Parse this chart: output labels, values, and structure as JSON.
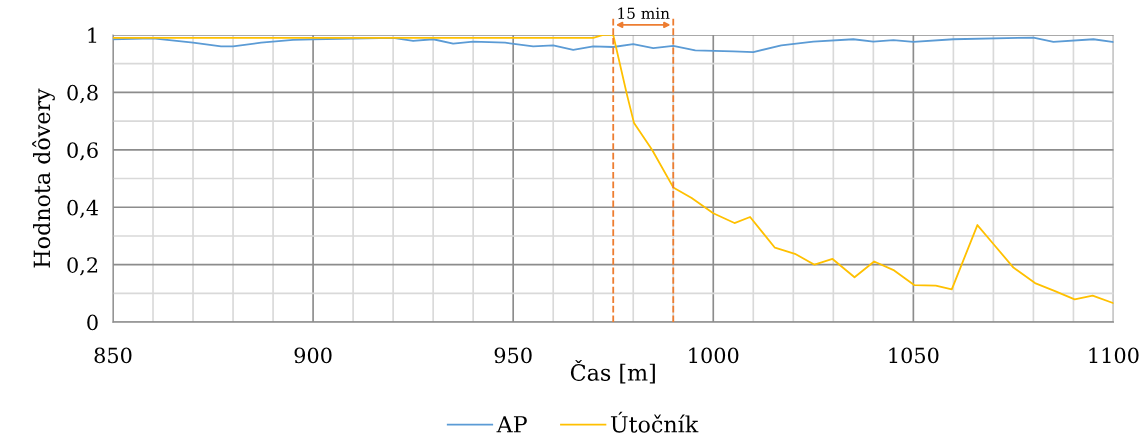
{
  "chart_data": {
    "type": "line",
    "xlabel": "Čas [m]",
    "ylabel": "Hodnota dôvery",
    "xlim": [
      850,
      1100
    ],
    "xticks": [
      850,
      {
        "value": 860,
        "label": null
      },
      {
        "value": 870,
        "label": null
      },
      {
        "value": 880,
        "label": null
      },
      {
        "value": 890,
        "label": null
      },
      900,
      {
        "value": 910,
        "label": null
      },
      {
        "value": 920,
        "label": null
      },
      {
        "value": 930,
        "label": null
      },
      {
        "value": 940,
        "label": null
      },
      950,
      {
        "value": 960,
        "label": null
      },
      {
        "value": 970,
        "label": null
      },
      {
        "value": 980,
        "label": null
      },
      {
        "value": 990,
        "label": null
      },
      1000,
      {
        "value": 1010,
        "label": null
      },
      {
        "value": 1020,
        "label": null
      },
      {
        "value": 1030,
        "label": null
      },
      {
        "value": 1040,
        "label": null
      },
      1050,
      {
        "value": 1060,
        "label": null
      },
      {
        "value": 1070,
        "label": null
      },
      {
        "value": 1080,
        "label": null
      },
      {
        "value": 1090,
        "label": null
      },
      1100
    ],
    "ylim": [
      0,
      1
    ],
    "yticks": [
      0,
      {
        "value": 0.1,
        "label": null
      },
      {
        "value": 0.2,
        "label": "0,2"
      },
      {
        "value": 0.3,
        "label": null
      },
      {
        "value": 0.4,
        "label": "0,4"
      },
      {
        "value": 0.5,
        "label": null
      },
      {
        "value": 0.6,
        "label": "0,6"
      },
      {
        "value": 0.7,
        "label": null
      },
      {
        "value": 0.8,
        "label": "0,8"
      },
      {
        "value": 0.9,
        "label": null
      },
      1
    ],
    "grid": true,
    "legend": "bottom",
    "marker": "none",
    "line_style": "solid",
    "series": [
      {
        "name": "AP",
        "color": "#5b9bd5",
        "x": [
          850,
          860,
          870,
          877,
          880,
          887,
          895,
          900,
          920,
          925,
          930,
          935,
          940,
          948,
          955,
          960,
          965,
          970,
          975,
          980,
          985,
          990,
          995.5,
          1005,
          1010,
          1017,
          1025,
          1035,
          1040,
          1045,
          1050,
          1060,
          1080,
          1085,
          1095,
          1100
        ],
        "values": [
          0.985,
          0.988,
          0.973,
          0.96,
          0.96,
          0.973,
          0.983,
          0.985,
          0.99,
          0.979,
          0.985,
          0.97,
          0.977,
          0.973,
          0.96,
          0.964,
          0.948,
          0.96,
          0.958,
          0.968,
          0.954,
          0.962,
          0.946,
          0.943,
          0.94,
          0.964,
          0.977,
          0.985,
          0.977,
          0.982,
          0.976,
          0.985,
          0.991,
          0.976,
          0.985,
          0.975
        ]
      },
      {
        "name": "Útočník",
        "color": "#ffc000",
        "x": [
          850,
          900,
          950,
          970,
          972.5,
          975,
          978.4,
          980.2,
          984.7,
          990,
          994.6,
          1000,
          1005.3,
          1009.2,
          1015.4,
          1020.4,
          1025.3,
          1029.8,
          1035.3,
          1040.2,
          1045.2,
          1050.2,
          1055.6,
          1059.6,
          1066,
          1070,
          1075,
          1080.4,
          1085.4,
          1090.3,
          1094.8,
          1100
        ],
        "values": [
          0.99,
          0.99,
          0.99,
          0.99,
          1.0,
          1.0,
          0.794,
          0.693,
          0.6,
          0.469,
          0.432,
          0.379,
          0.345,
          0.366,
          0.259,
          0.238,
          0.2,
          0.22,
          0.156,
          0.211,
          0.18,
          0.129,
          0.127,
          0.114,
          0.338,
          0.272,
          0.19,
          0.136,
          0.108,
          0.079,
          0.092,
          0.066
        ]
      }
    ],
    "ref_lines": [
      {
        "axis": "x",
        "value": 975,
        "color": "#ed7d31",
        "line_style": "dashed"
      },
      {
        "axis": "x",
        "value": 990,
        "color": "#ed7d31",
        "line_style": "dashed"
      }
    ],
    "annotations": [
      "15 min"
    ]
  }
}
